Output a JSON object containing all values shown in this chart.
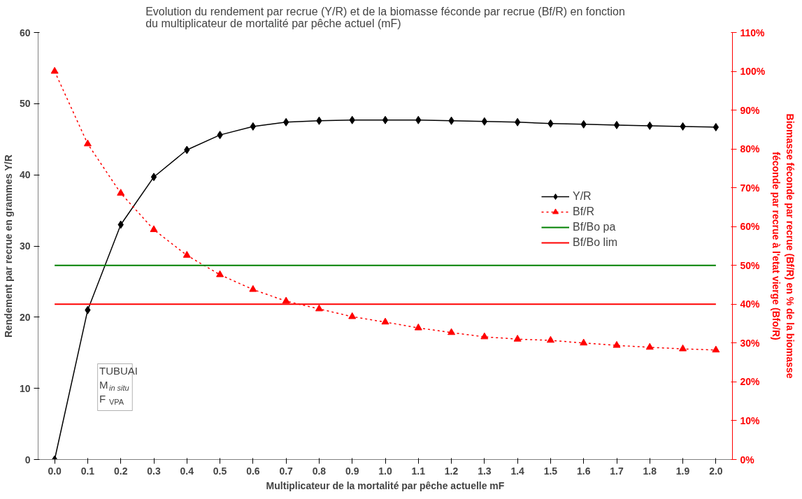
{
  "chart_data": {
    "type": "line",
    "title": "Evolution du rendement par recrue (Y/R) et de la biomasse féconde par recrue (Bf/R) en fonction\ndu multiplicateur de mortalité par pêche actuel (mF)",
    "xlabel": "Multiplicateur de la mortalité par pêche actuelle mF",
    "ylabel": "Rendement par recrue en grammes Y/R",
    "y2label": "Biomasse féconde par recrue (Bf/R) en % de la biomasse\nféconde par recrue à l'etat vierge (Bfo/R)",
    "categories": [
      "0.0",
      "0.1",
      "0.2",
      "0.3",
      "0.4",
      "0.5",
      "0.6",
      "0.7",
      "0.8",
      "0.9",
      "1.0",
      "1.1",
      "1.2",
      "1.3",
      "1.4",
      "1.5",
      "1.6",
      "1.7",
      "1.8",
      "1.9",
      "2.0"
    ],
    "series": [
      {
        "name": "Y/R",
        "color": "#000000",
        "marker": "diamond",
        "line_style": "solid",
        "values": [
          0,
          21.0,
          33.0,
          39.7,
          43.5,
          45.6,
          46.8,
          47.4,
          47.6,
          47.7,
          47.7,
          47.7,
          47.6,
          47.5,
          47.4,
          47.2,
          47.1,
          47.0,
          46.9,
          46.8,
          46.7
        ]
      },
      {
        "name": "Bf/R",
        "color": "#ff0000",
        "marker": "triangle",
        "line_style": "dotted",
        "axis": "y2",
        "values": [
          100,
          81.3,
          68.6,
          59.2,
          52.6,
          47.6,
          43.8,
          40.8,
          38.8,
          36.8,
          35.4,
          33.9,
          32.7,
          31.6,
          31.0,
          30.7,
          30.0,
          29.4,
          28.9,
          28.5,
          28.2
        ]
      },
      {
        "name": "Bf/Bo pa",
        "color": "#008000",
        "marker": "none",
        "line_style": "solid",
        "axis": "y2",
        "values": [
          50,
          50,
          50,
          50,
          50,
          50,
          50,
          50,
          50,
          50,
          50,
          50,
          50,
          50,
          50,
          50,
          50,
          50,
          50,
          50,
          50
        ]
      },
      {
        "name": "Bf/Bo lim",
        "color": "#ff0000",
        "marker": "none",
        "line_style": "solid",
        "axis": "y2",
        "values": [
          40,
          40,
          40,
          40,
          40,
          40,
          40,
          40,
          40,
          40,
          40,
          40,
          40,
          40,
          40,
          40,
          40,
          40,
          40,
          40,
          40
        ]
      }
    ],
    "ylim": [
      0,
      60
    ],
    "yticks": [
      0,
      10,
      20,
      30,
      40,
      50,
      60
    ],
    "y2lim": [
      0,
      110
    ],
    "y2ticks": [
      {
        "value": 0,
        "label": "0%"
      },
      {
        "value": 10,
        "label": "10%"
      },
      {
        "value": 20,
        "label": "20%"
      },
      {
        "value": 30,
        "label": "30%"
      },
      {
        "value": 40,
        "label": "40%"
      },
      {
        "value": 50,
        "label": "50%"
      },
      {
        "value": 60,
        "label": "60%"
      },
      {
        "value": 70,
        "label": "70%"
      },
      {
        "value": 80,
        "label": "80%"
      },
      {
        "value": 90,
        "label": "90%"
      },
      {
        "value": 100,
        "label": "100%"
      },
      {
        "value": 110,
        "label": "110%"
      }
    ],
    "annotations": [
      "TUBUAI",
      "M$_{in situ}$",
      "F$_{VPA}$"
    ],
    "legend": "right",
    "grid": false
  }
}
